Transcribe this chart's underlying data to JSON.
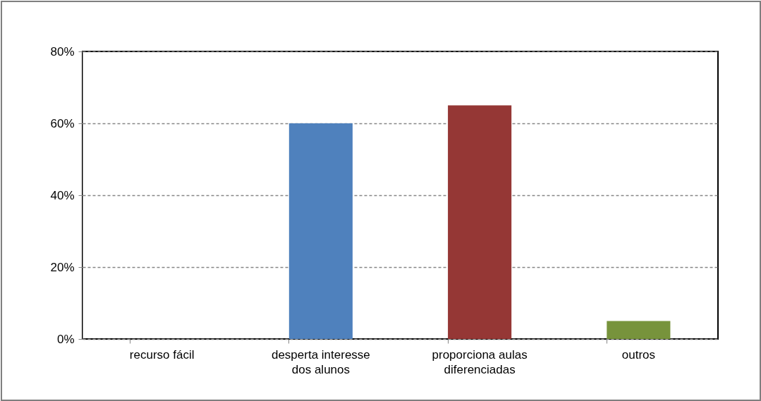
{
  "chart_data": {
    "type": "bar",
    "categories": [
      "recurso fácil",
      "desperta interesse dos alunos",
      "proporciona aulas diferenciadas",
      "outros"
    ],
    "values": [
      0,
      60,
      65,
      5
    ],
    "colors": [
      "#4f81bd",
      "#4f81bd",
      "#953735",
      "#77933c"
    ],
    "ylim": [
      0,
      80
    ],
    "yticks": [
      {
        "value": 0,
        "label": "0%"
      },
      {
        "value": 20,
        "label": "20%"
      },
      {
        "value": 40,
        "label": "40%"
      },
      {
        "value": 60,
        "label": "60%"
      },
      {
        "value": 80,
        "label": "80%"
      }
    ],
    "grid": "y"
  }
}
